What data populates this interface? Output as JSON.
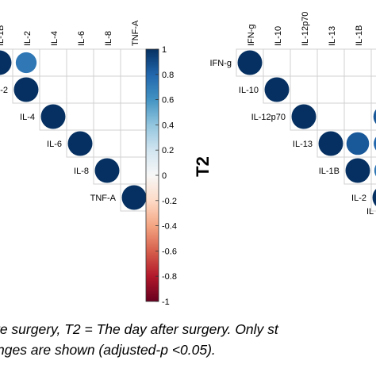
{
  "chart_data": [
    {
      "type": "heatmap",
      "variant": "correlation-upper-triangle-circles",
      "panel_label": "",
      "columns": [
        "IL-1B",
        "IL-2",
        "IL-4",
        "IL-6",
        "IL-8",
        "TNF-A"
      ],
      "rows": [
        "IL-1B",
        "IL-2",
        "IL-4",
        "IL-6",
        "IL-8",
        "TNF-A"
      ],
      "row_labels_visible": [
        "-2",
        "IL-4",
        "IL-6",
        "IL-8",
        "TNF-A"
      ],
      "column_labels_visible": [
        "IL-1B",
        "IL-2",
        "IL-4",
        "IL-6",
        "IL-8",
        "TNF-A"
      ],
      "cells": [
        {
          "row": "IL-1B",
          "col": "IL-1B",
          "value": 1.0
        },
        {
          "row": "IL-1B",
          "col": "IL-2",
          "value": 0.72
        },
        {
          "row": "IL-2",
          "col": "IL-2",
          "value": 1.0
        },
        {
          "row": "IL-4",
          "col": "IL-4",
          "value": 1.0
        },
        {
          "row": "IL-6",
          "col": "IL-6",
          "value": 1.0
        },
        {
          "row": "IL-8",
          "col": "IL-8",
          "value": 1.0
        },
        {
          "row": "TNF-A",
          "col": "TNF-A",
          "value": 1.0
        }
      ]
    },
    {
      "type": "heatmap",
      "variant": "correlation-upper-triangle-circles",
      "panel_label": "T2",
      "columns": [
        "IFN-g",
        "IL-10",
        "IL-12p70",
        "IL-13",
        "IL-1B",
        "IL-2"
      ],
      "rows": [
        "IFN-g",
        "IL-10",
        "IL-12p70",
        "IL-13",
        "IL-1B",
        "IL-2"
      ],
      "row_labels_visible": [
        "IFN-g",
        "IL-10",
        "IL-12p70",
        "IL-13",
        "IL-1B",
        "IL-2",
        "IL"
      ],
      "column_labels_visible": [
        "IFN-g",
        "IL-10",
        "IL-12p70",
        "IL-13",
        "IL-1B",
        "IL-2"
      ],
      "cells": [
        {
          "row": "IFN-g",
          "col": "IFN-g",
          "value": 1.0
        },
        {
          "row": "IL-10",
          "col": "IL-10",
          "value": 1.0
        },
        {
          "row": "IL-12p70",
          "col": "IL-12p70",
          "value": 1.0
        },
        {
          "row": "IL-12p70",
          "col": "IL-2",
          "value": 0.85
        },
        {
          "row": "IL-13",
          "col": "IL-13",
          "value": 1.0
        },
        {
          "row": "IL-13",
          "col": "IL-1B",
          "value": 0.85
        },
        {
          "row": "IL-13",
          "col": "IL-2",
          "value": 0.8
        },
        {
          "row": "IL-1B",
          "col": "IL-1B",
          "value": 1.0
        },
        {
          "row": "IL-1B",
          "col": "IL-2",
          "value": 0.72
        },
        {
          "row": "IL-2",
          "col": "IL-2",
          "value": 1.0
        }
      ]
    }
  ],
  "colorbar": {
    "ticks": [
      "1",
      "0.8",
      "0.6",
      "0.4",
      "0.2",
      "0",
      "-0.2",
      "-0.4",
      "-0.6",
      "-0.8",
      "-1"
    ],
    "tick_values": [
      1,
      0.8,
      0.6,
      0.4,
      0.2,
      0,
      -0.2,
      -0.4,
      -0.6,
      -0.8,
      -1
    ],
    "range": [
      -1,
      1
    ],
    "colors": {
      "low": "#67001f",
      "mid": "#f7f7f7",
      "high": "#053061"
    }
  },
  "caption": {
    "line1": "re surgery, T2 = The day after surgery. Only st",
    "line2": "nges are shown (adjusted-p <0.05)."
  }
}
